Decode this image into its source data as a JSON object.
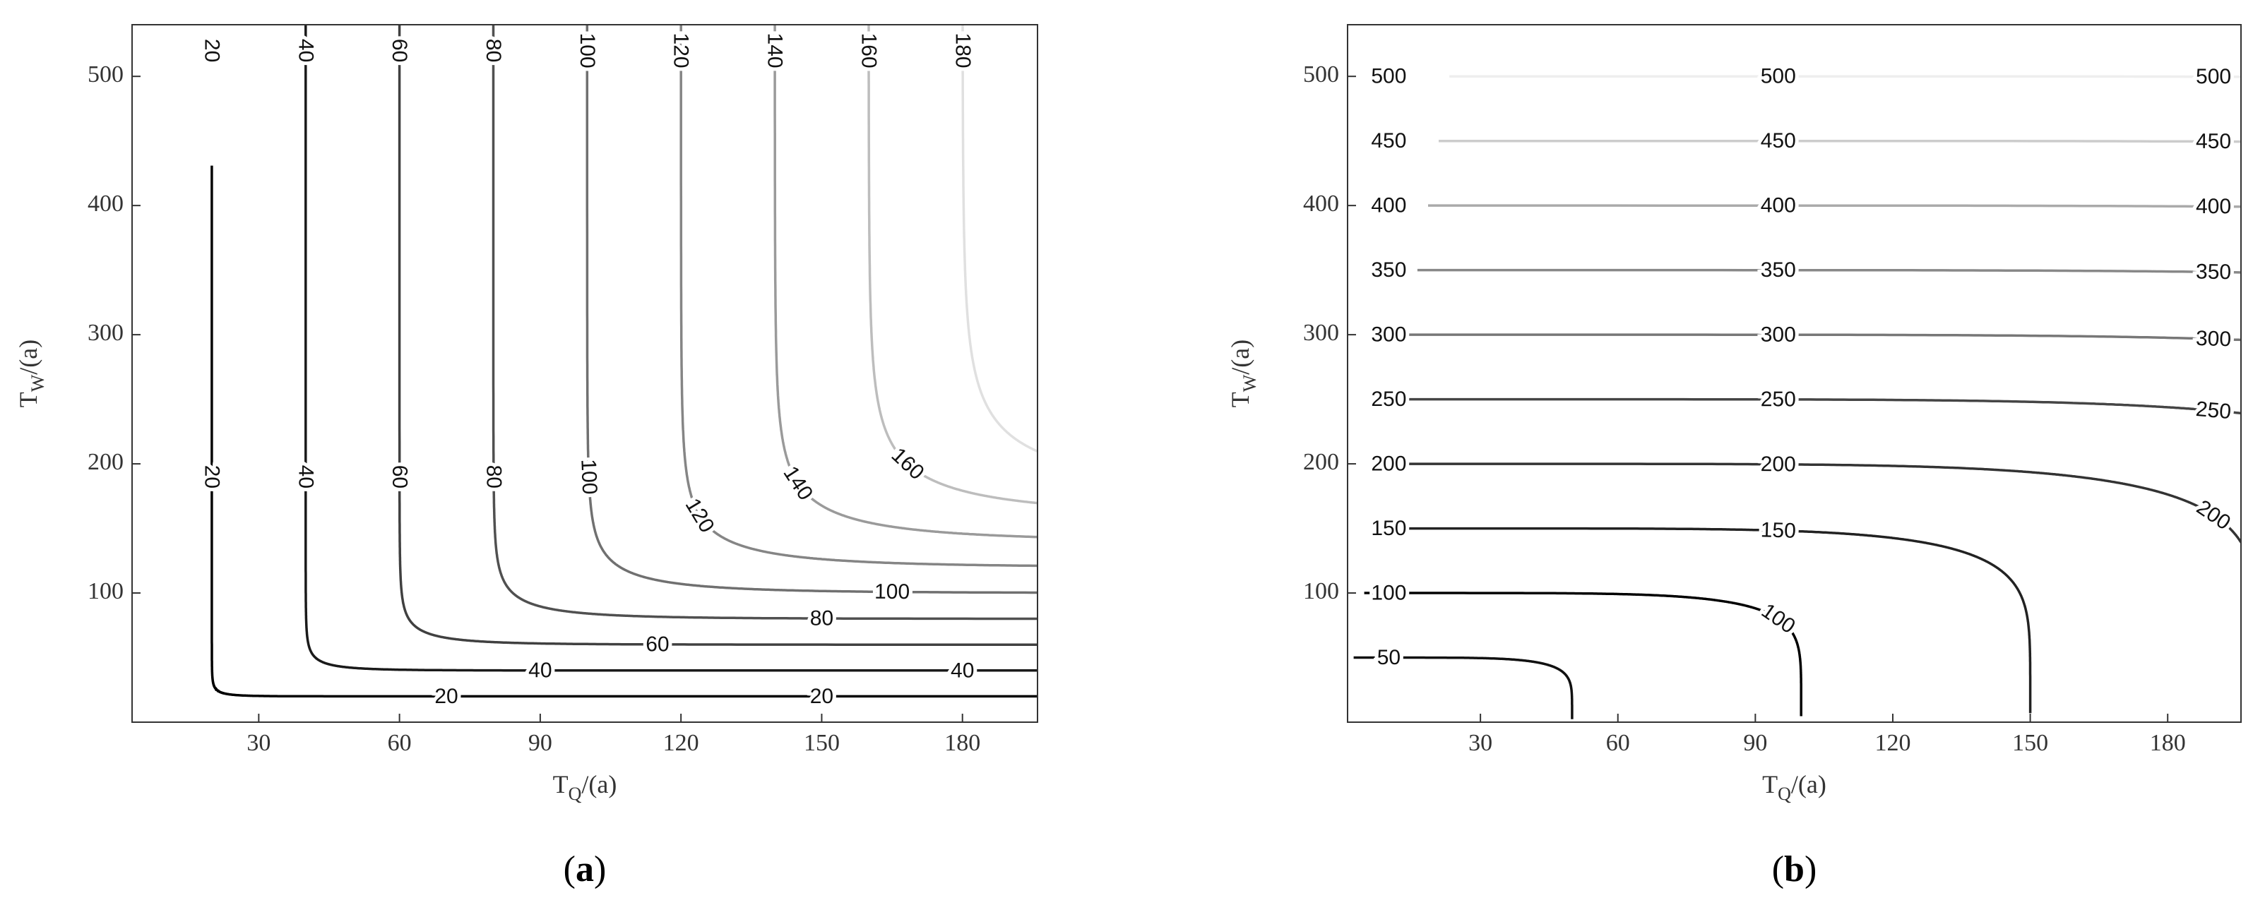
{
  "chart_data": [
    {
      "type": "contour",
      "kind": "min",
      "xlabel": [
        "T",
        "Q",
        "/(a)"
      ],
      "ylabel": [
        "T",
        "W",
        "/(a)"
      ],
      "caption": [
        "(",
        "a",
        ")"
      ],
      "xlim": [
        3,
        196
      ],
      "ylim": [
        0,
        540
      ],
      "xticks": [
        30,
        60,
        90,
        120,
        150,
        180
      ],
      "yticks": [
        100,
        200,
        300,
        400,
        500
      ],
      "levels": [
        20,
        40,
        60,
        80,
        100,
        120,
        140,
        160,
        180
      ],
      "colors": [
        "#000000",
        "#1a1a1a",
        "#404040",
        "#505050",
        "#707070",
        "#858585",
        "#9a9a9a",
        "#bdbdbd",
        "#e0e0e0"
      ]
    },
    {
      "type": "contour",
      "kind": "max",
      "xlabel": [
        "T",
        "Q",
        "/(a)"
      ],
      "ylabel": [
        "T",
        "W",
        "/(a)"
      ],
      "caption": [
        "(",
        "b",
        ")"
      ],
      "xlim": [
        1,
        196
      ],
      "ylim": [
        0,
        540
      ],
      "xticks": [
        30,
        60,
        90,
        120,
        150,
        180
      ],
      "yticks": [
        100,
        200,
        300,
        400,
        500
      ],
      "levels": [
        50,
        100,
        150,
        200,
        250,
        300,
        350,
        400,
        450,
        500
      ],
      "colors": [
        "#111111",
        "#000000",
        "#222222",
        "#333333",
        "#454545",
        "#777777",
        "#888888",
        "#aaaaaa",
        "#cccccc",
        "#eeeeee"
      ]
    }
  ]
}
